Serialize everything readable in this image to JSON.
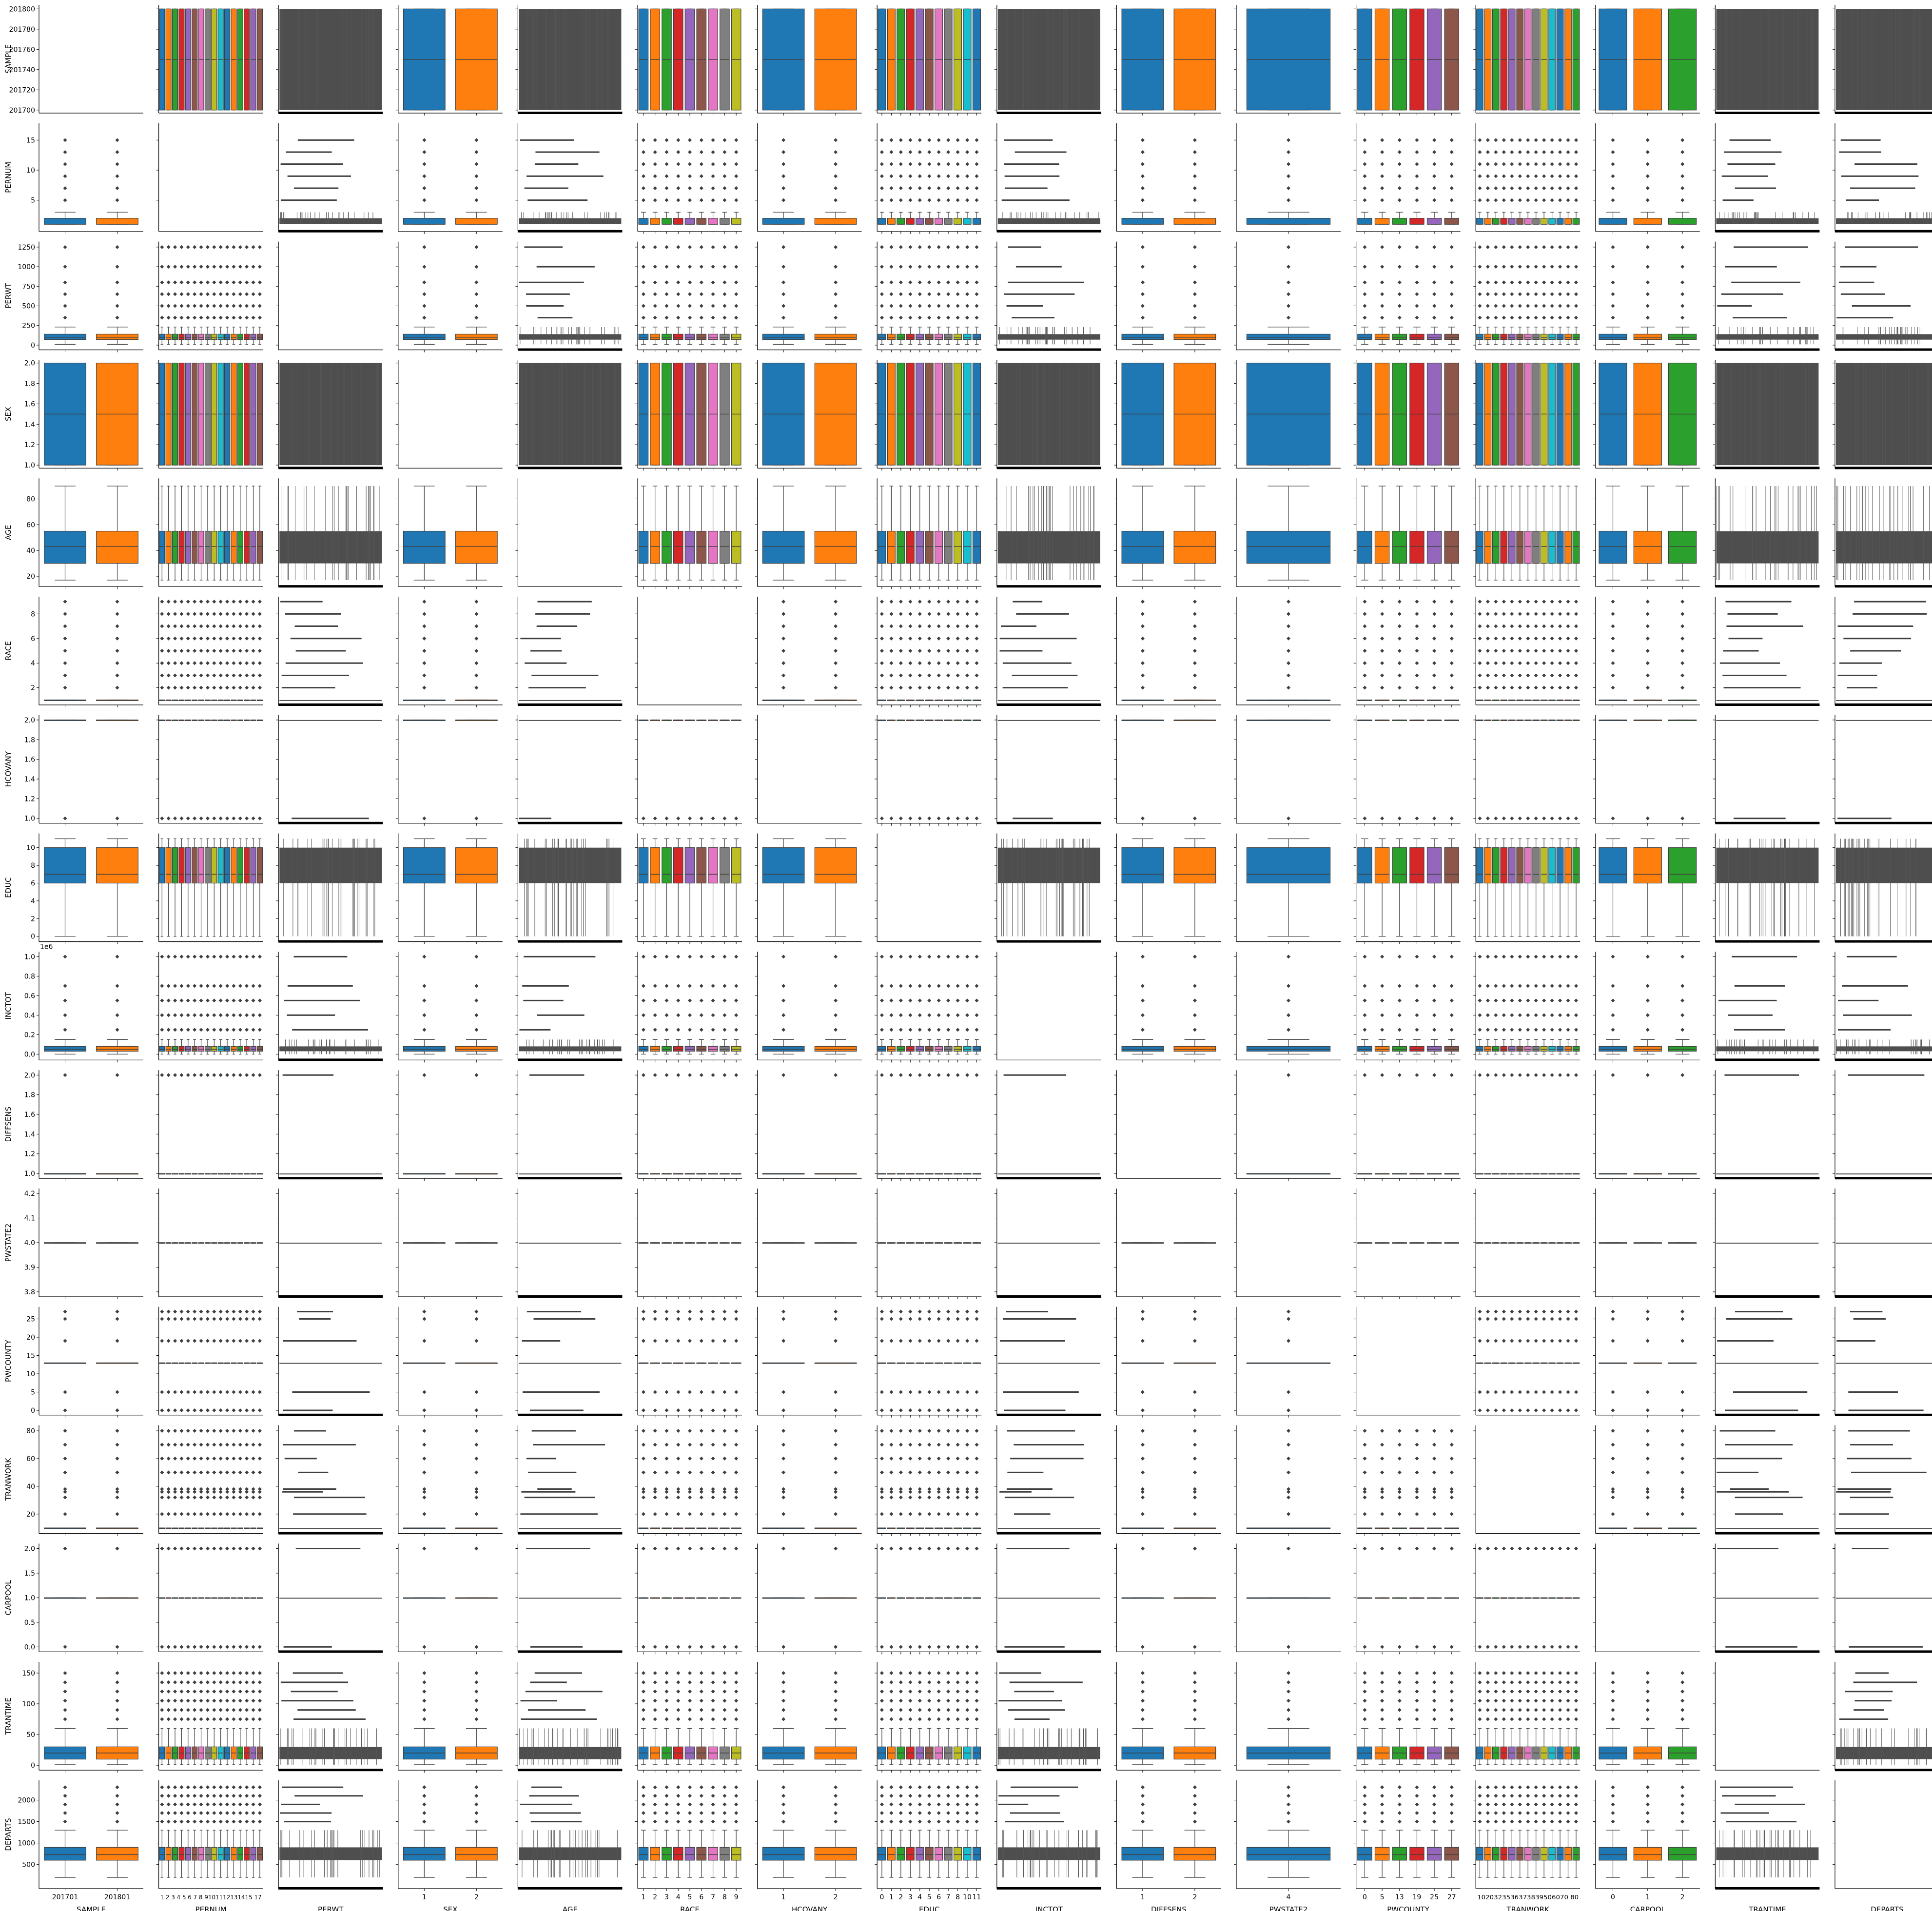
{
  "chart_data": {
    "type": "pairgrid-boxplot",
    "variables": [
      "SAMPLE",
      "PERNUM",
      "PERWT",
      "SEX",
      "AGE",
      "RACE",
      "HCOVANY",
      "EDUC",
      "INCTOT",
      "DIFFSENS",
      "PWSTATE2",
      "PWCOUNTY",
      "TRANWORK",
      "CARPOOL",
      "TRANTIME",
      "DEPARTS"
    ],
    "palette": [
      "#1f77b4",
      "#ff7f0e",
      "#2ca02c",
      "#d62728",
      "#9467bd",
      "#8c564b",
      "#e377c2",
      "#7f7f7f",
      "#bcbd22",
      "#17becf"
    ],
    "rows": [
      {
        "var": "SAMPLE",
        "ticks": [
          "201700",
          "201720",
          "201740",
          "201760",
          "201780",
          "201800"
        ],
        "tick_values": [
          201700,
          201720,
          201740,
          201760,
          201780,
          201800
        ],
        "ylim": [
          201697,
          201804
        ],
        "median": 201750,
        "q1": 201700,
        "q3": 201800,
        "lo": 201700,
        "hi": 201800,
        "out": [],
        "outs": "none"
      },
      {
        "var": "PERNUM",
        "ticks": [
          "5",
          "10",
          "15"
        ],
        "tick_values": [
          5,
          10,
          15
        ],
        "ylim": [
          -0.2,
          17.8
        ],
        "median": 1,
        "q1": 1,
        "q3": 2,
        "lo": 1,
        "hi": 3,
        "out": [
          5,
          7,
          9,
          11,
          13,
          15
        ],
        "outs": "high"
      },
      {
        "var": "PERWT",
        "ticks": [
          "0",
          "250",
          "500",
          "750",
          "1000",
          "1250"
        ],
        "tick_values": [
          0,
          250,
          500,
          750,
          1000,
          1250
        ],
        "ylim": [
          -60,
          1320
        ],
        "median": 100,
        "q1": 70,
        "q3": 140,
        "lo": 10,
        "hi": 230,
        "out": [
          350,
          500,
          650,
          800,
          1000,
          1250
        ],
        "outs": "high"
      },
      {
        "var": "SEX",
        "ticks": [
          "1.0",
          "1.2",
          "1.4",
          "1.6",
          "1.8",
          "2.0"
        ],
        "tick_values": [
          1.0,
          1.2,
          1.4,
          1.6,
          1.8,
          2.0
        ],
        "ylim": [
          0.97,
          2.03
        ],
        "median": 1.5,
        "q1": 1,
        "q3": 2,
        "lo": 1,
        "hi": 2,
        "out": [],
        "outs": "none"
      },
      {
        "var": "AGE",
        "ticks": [
          "20",
          "40",
          "60",
          "80"
        ],
        "tick_values": [
          20,
          40,
          60,
          80
        ],
        "ylim": [
          12,
          96
        ],
        "median": 43,
        "q1": 30,
        "q3": 55,
        "lo": 17,
        "hi": 90,
        "out": [],
        "outs": "none"
      },
      {
        "var": "RACE",
        "ticks": [
          "2",
          "4",
          "6",
          "8"
        ],
        "tick_values": [
          2,
          4,
          6,
          8
        ],
        "ylim": [
          0.6,
          9.4
        ],
        "median": 1,
        "q1": 1,
        "q3": 1,
        "lo": 1,
        "hi": 1,
        "out": [
          2,
          3,
          4,
          5,
          6,
          7,
          8,
          9
        ],
        "outs": "high"
      },
      {
        "var": "HCOVANY",
        "ticks": [
          "1.0",
          "1.2",
          "1.4",
          "1.6",
          "1.8",
          "2.0"
        ],
        "tick_values": [
          1.0,
          1.2,
          1.4,
          1.6,
          1.8,
          2.0
        ],
        "ylim": [
          0.95,
          2.05
        ],
        "median": 2,
        "q1": 2,
        "q3": 2,
        "lo": 2,
        "hi": 2,
        "out": [
          1
        ],
        "outs": "low"
      },
      {
        "var": "EDUC",
        "ticks": [
          "0",
          "2",
          "4",
          "6",
          "8",
          "10"
        ],
        "tick_values": [
          0,
          2,
          4,
          6,
          8,
          10
        ],
        "ylim": [
          -0.6,
          11.6
        ],
        "median": 7,
        "q1": 6,
        "q3": 10,
        "lo": 0,
        "hi": 11,
        "out": [],
        "outs": "none"
      },
      {
        "var": "INCTOT",
        "ticks": [
          "0.0",
          "0.2",
          "0.4",
          "0.6",
          "0.8",
          "1.0"
        ],
        "tick_values": [
          0,
          0.2,
          0.4,
          0.6,
          0.8,
          1.0
        ],
        "ylim": [
          -0.06,
          1.05
        ],
        "median": 0.05,
        "q1": 0.03,
        "q3": 0.08,
        "lo": 0,
        "hi": 0.15,
        "out": [
          0.25,
          0.4,
          0.55,
          0.7,
          1.0
        ],
        "outs": "high",
        "offset_label": "1e6"
      },
      {
        "var": "DIFFSENS",
        "ticks": [
          "1.0",
          "1.2",
          "1.4",
          "1.6",
          "1.8",
          "2.0"
        ],
        "tick_values": [
          1.0,
          1.2,
          1.4,
          1.6,
          1.8,
          2.0
        ],
        "ylim": [
          0.95,
          2.05
        ],
        "median": 1,
        "q1": 1,
        "q3": 1,
        "lo": 1,
        "hi": 1,
        "out": [
          2
        ],
        "outs": "high"
      },
      {
        "var": "PWSTATE2",
        "ticks": [
          "3.8",
          "3.9",
          "4.0",
          "4.1",
          "4.2"
        ],
        "tick_values": [
          3.8,
          3.9,
          4.0,
          4.1,
          4.2
        ],
        "ylim": [
          3.78,
          4.22
        ],
        "median": 4,
        "q1": 4,
        "q3": 4,
        "lo": 4,
        "hi": 4,
        "out": [],
        "outs": "none"
      },
      {
        "var": "PWCOUNTY",
        "ticks": [
          "0",
          "5",
          "10",
          "15",
          "20",
          "25"
        ],
        "tick_values": [
          0,
          5,
          10,
          15,
          20,
          25
        ],
        "ylim": [
          -1.3,
          28.3
        ],
        "median": 13,
        "q1": 13,
        "q3": 13,
        "lo": 13,
        "hi": 13,
        "out": [
          0,
          5,
          19,
          25,
          27
        ],
        "outs": "both"
      },
      {
        "var": "TRANWORK",
        "ticks": [
          "20",
          "40",
          "60",
          "80"
        ],
        "tick_values": [
          20,
          40,
          60,
          80
        ],
        "ylim": [
          6,
          84
        ],
        "median": 10,
        "q1": 10,
        "q3": 10,
        "lo": 10,
        "hi": 10,
        "out": [
          20,
          32,
          36,
          38,
          50,
          60,
          70,
          80
        ],
        "outs": "high"
      },
      {
        "var": "CARPOOL",
        "ticks": [
          "0.0",
          "0.5",
          "1.0",
          "1.5",
          "2.0"
        ],
        "tick_values": [
          0,
          0.5,
          1.0,
          1.5,
          2.0
        ],
        "ylim": [
          -0.1,
          2.1
        ],
        "median": 1,
        "q1": 1,
        "q3": 1,
        "lo": 1,
        "hi": 1,
        "out": [
          0,
          2
        ],
        "outs": "both"
      },
      {
        "var": "TRANTIME",
        "ticks": [
          "0",
          "50",
          "100",
          "150"
        ],
        "tick_values": [
          0,
          50,
          100,
          150
        ],
        "ylim": [
          -8,
          168
        ],
        "median": 20,
        "q1": 10,
        "q3": 30,
        "lo": 1,
        "hi": 60,
        "out": [
          75,
          90,
          105,
          120,
          135,
          150
        ],
        "outs": "high"
      },
      {
        "var": "DEPARTS",
        "ticks": [
          "500",
          "1000",
          "1500",
          "2000"
        ],
        "tick_values": [
          500,
          1000,
          1500,
          2000
        ],
        "ylim": [
          -60,
          2460
        ],
        "median": 730,
        "q1": 600,
        "q3": 900,
        "lo": 200,
        "hi": 1300,
        "out": [
          1500,
          1700,
          1900,
          2100,
          2300
        ],
        "outs": "high"
      }
    ],
    "cols": [
      {
        "var": "SAMPLE",
        "type": "cat",
        "labels": [
          "201701",
          "201801"
        ]
      },
      {
        "var": "PERNUM",
        "type": "dense",
        "labels": [
          "1 2 3 4 5 6 7 8 9101112131415 17"
        ]
      },
      {
        "var": "PERWT",
        "type": "cont",
        "labels": []
      },
      {
        "var": "SEX",
        "type": "cat",
        "labels": [
          "1",
          "2"
        ]
      },
      {
        "var": "AGE",
        "type": "cont",
        "labels": []
      },
      {
        "var": "RACE",
        "type": "cat",
        "labels": [
          "1",
          "2",
          "3",
          "4",
          "5",
          "6",
          "7",
          "8",
          "9"
        ]
      },
      {
        "var": "HCOVANY",
        "type": "cat",
        "labels": [
          "1",
          "2"
        ]
      },
      {
        "var": "EDUC",
        "type": "cat",
        "labels": [
          "0",
          "1",
          "2",
          "3",
          "4",
          "5",
          "6",
          "7",
          "8",
          "10",
          "11"
        ]
      },
      {
        "var": "INCTOT",
        "type": "cont",
        "labels": []
      },
      {
        "var": "DIFFSENS",
        "type": "cat",
        "labels": [
          "1",
          "2"
        ]
      },
      {
        "var": "PWSTATE2",
        "type": "cat",
        "labels": [
          "4"
        ]
      },
      {
        "var": "PWCOUNTY",
        "type": "cat",
        "labels": [
          "0",
          "5",
          "13",
          "19",
          "25",
          "27"
        ]
      },
      {
        "var": "TRANWORK",
        "type": "dense",
        "labels": [
          "1020323536373839506070 80"
        ]
      },
      {
        "var": "CARPOOL",
        "type": "cat",
        "labels": [
          "0",
          "1",
          "2"
        ]
      },
      {
        "var": "TRANTIME",
        "type": "cont",
        "labels": []
      },
      {
        "var": "DEPARTS",
        "type": "cont",
        "labels": []
      }
    ]
  }
}
